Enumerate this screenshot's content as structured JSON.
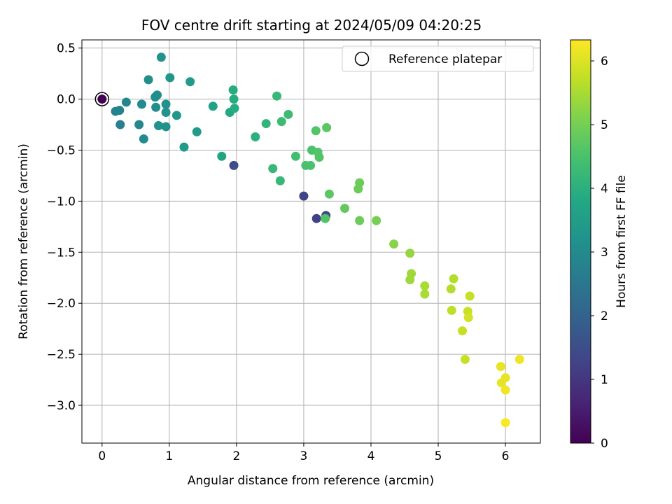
{
  "chart_data": {
    "type": "scatter",
    "title": "FOV centre drift starting at 2024/05/09 04:20:25",
    "xlabel": "Angular distance from reference (arcmin)",
    "ylabel": "Rotation from reference (arcmin)",
    "xlim": [
      -0.3,
      6.52
    ],
    "ylim": [
      -3.37,
      0.58
    ],
    "xticks": [
      0,
      1,
      2,
      3,
      4,
      5,
      6
    ],
    "yticks": [
      0.5,
      0.0,
      -0.5,
      -1.0,
      -1.5,
      -2.0,
      -2.5,
      -3.0
    ],
    "xtick_labels": [
      "0",
      "1",
      "2",
      "3",
      "4",
      "5",
      "6"
    ],
    "ytick_labels": [
      "0.5",
      "0.0",
      "−0.5",
      "−1.0",
      "−1.5",
      "−2.0",
      "−2.5",
      "−3.0"
    ],
    "grid": true,
    "legend": {
      "position": "top-right",
      "entries": [
        "Reference platepar"
      ]
    },
    "colorbar": {
      "label": "Hours from first FF file",
      "colormap": "viridis",
      "range": [
        0,
        6.33
      ],
      "ticks": [
        0,
        1,
        2,
        3,
        4,
        5,
        6
      ],
      "tick_labels": [
        "0",
        "1",
        "2",
        "3",
        "4",
        "5",
        "6"
      ]
    },
    "reference_point": {
      "x": 0,
      "y": 0,
      "c": 0
    },
    "series": [
      {
        "points": [
          {
            "x": 0.0,
            "y": 0.0,
            "c": 0.0
          },
          {
            "x": 1.96,
            "y": -0.65,
            "c": 1.5
          },
          {
            "x": 3.0,
            "y": -0.95,
            "c": 1.3
          },
          {
            "x": 3.19,
            "y": -1.17,
            "c": 1.2
          },
          {
            "x": 3.33,
            "y": -1.14,
            "c": 1.4
          },
          {
            "x": 0.2,
            "y": -0.12,
            "c": 2.8
          },
          {
            "x": 0.26,
            "y": -0.11,
            "c": 2.8
          },
          {
            "x": 0.27,
            "y": -0.25,
            "c": 2.7
          },
          {
            "x": 0.36,
            "y": -0.03,
            "c": 2.9
          },
          {
            "x": 0.55,
            "y": -0.25,
            "c": 2.9
          },
          {
            "x": 0.59,
            "y": -0.05,
            "c": 3.0
          },
          {
            "x": 0.62,
            "y": -0.39,
            "c": 3.0
          },
          {
            "x": 0.69,
            "y": 0.19,
            "c": 3.1
          },
          {
            "x": 0.79,
            "y": 0.02,
            "c": 3.1
          },
          {
            "x": 0.8,
            "y": -0.08,
            "c": 3.1
          },
          {
            "x": 0.82,
            "y": 0.04,
            "c": 3.1
          },
          {
            "x": 0.84,
            "y": -0.26,
            "c": 3.2
          },
          {
            "x": 0.88,
            "y": 0.41,
            "c": 3.2
          },
          {
            "x": 0.95,
            "y": -0.05,
            "c": 3.2
          },
          {
            "x": 0.95,
            "y": -0.13,
            "c": 3.2
          },
          {
            "x": 0.95,
            "y": -0.27,
            "c": 3.2
          },
          {
            "x": 1.01,
            "y": 0.21,
            "c": 3.3
          },
          {
            "x": 1.11,
            "y": -0.16,
            "c": 3.3
          },
          {
            "x": 1.22,
            "y": -0.47,
            "c": 3.4
          },
          {
            "x": 1.31,
            "y": 0.17,
            "c": 3.4
          },
          {
            "x": 1.41,
            "y": -0.32,
            "c": 3.4
          },
          {
            "x": 1.65,
            "y": -0.07,
            "c": 3.6
          },
          {
            "x": 1.78,
            "y": -0.56,
            "c": 3.7
          },
          {
            "x": 1.9,
            "y": -0.13,
            "c": 3.8
          },
          {
            "x": 1.95,
            "y": 0.09,
            "c": 3.9
          },
          {
            "x": 1.96,
            "y": 0.0,
            "c": 3.9
          },
          {
            "x": 1.97,
            "y": -0.09,
            "c": 3.9
          },
          {
            "x": 2.28,
            "y": -0.37,
            "c": 4.0
          },
          {
            "x": 2.44,
            "y": -0.24,
            "c": 4.1
          },
          {
            "x": 2.54,
            "y": -0.68,
            "c": 4.2
          },
          {
            "x": 2.6,
            "y": 0.03,
            "c": 4.2
          },
          {
            "x": 2.65,
            "y": -0.8,
            "c": 4.2
          },
          {
            "x": 2.67,
            "y": -0.22,
            "c": 4.3
          },
          {
            "x": 2.77,
            "y": -0.15,
            "c": 4.3
          },
          {
            "x": 2.88,
            "y": -0.56,
            "c": 4.4
          },
          {
            "x": 3.03,
            "y": -0.65,
            "c": 4.5
          },
          {
            "x": 3.1,
            "y": -0.65,
            "c": 4.5
          },
          {
            "x": 3.12,
            "y": -0.5,
            "c": 4.5
          },
          {
            "x": 3.18,
            "y": -0.31,
            "c": 4.6
          },
          {
            "x": 3.21,
            "y": -0.52,
            "c": 4.6
          },
          {
            "x": 3.23,
            "y": -0.57,
            "c": 4.6
          },
          {
            "x": 3.32,
            "y": -1.17,
            "c": 4.6
          },
          {
            "x": 3.34,
            "y": -0.28,
            "c": 4.7
          },
          {
            "x": 3.38,
            "y": -0.93,
            "c": 4.7
          },
          {
            "x": 3.61,
            "y": -1.07,
            "c": 4.8
          },
          {
            "x": 3.81,
            "y": -0.88,
            "c": 4.9
          },
          {
            "x": 3.83,
            "y": -0.82,
            "c": 4.9
          },
          {
            "x": 3.83,
            "y": -1.19,
            "c": 4.9
          },
          {
            "x": 4.08,
            "y": -1.19,
            "c": 5.0
          },
          {
            "x": 4.34,
            "y": -1.42,
            "c": 5.2
          },
          {
            "x": 4.58,
            "y": -1.51,
            "c": 5.3
          },
          {
            "x": 4.58,
            "y": -1.77,
            "c": 5.4
          },
          {
            "x": 4.6,
            "y": -1.71,
            "c": 5.4
          },
          {
            "x": 4.8,
            "y": -1.83,
            "c": 5.5
          },
          {
            "x": 4.8,
            "y": -1.91,
            "c": 5.5
          },
          {
            "x": 5.19,
            "y": -1.86,
            "c": 5.6
          },
          {
            "x": 5.2,
            "y": -2.07,
            "c": 5.7
          },
          {
            "x": 5.23,
            "y": -1.76,
            "c": 5.6
          },
          {
            "x": 5.36,
            "y": -2.27,
            "c": 5.8
          },
          {
            "x": 5.4,
            "y": -2.55,
            "c": 5.8
          },
          {
            "x": 5.44,
            "y": -2.08,
            "c": 5.8
          },
          {
            "x": 5.45,
            "y": -2.14,
            "c": 5.9
          },
          {
            "x": 5.47,
            "y": -1.93,
            "c": 5.8
          },
          {
            "x": 5.93,
            "y": -2.62,
            "c": 6.1
          },
          {
            "x": 5.94,
            "y": -2.78,
            "c": 6.1
          },
          {
            "x": 6.0,
            "y": -2.73,
            "c": 6.1
          },
          {
            "x": 6.0,
            "y": -2.85,
            "c": 6.2
          },
          {
            "x": 6.0,
            "y": -3.17,
            "c": 6.3
          },
          {
            "x": 6.21,
            "y": -2.55,
            "c": 6.2
          }
        ]
      }
    ]
  }
}
